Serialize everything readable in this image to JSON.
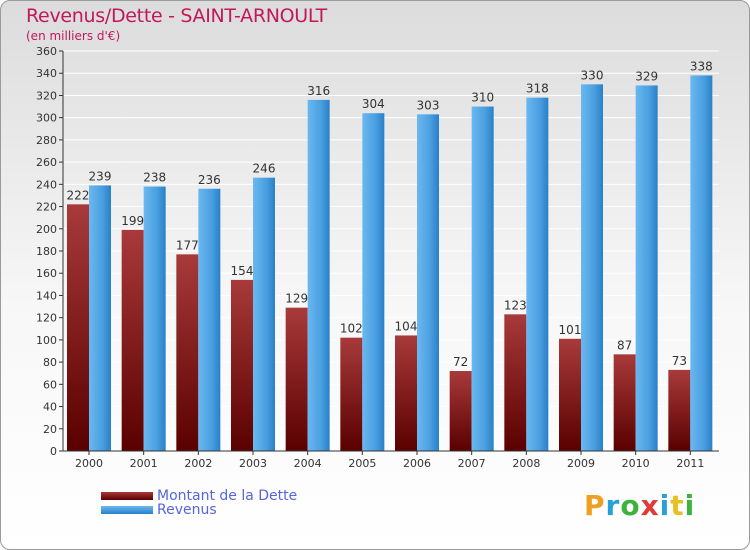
{
  "title": "Revenus/Dette - SAINT-ARNOULT",
  "subtitle": "(en milliers d'€)",
  "logo": {
    "text": "Proxiti",
    "colors": [
      "#f0a020",
      "#2aa0d8",
      "#3cb43c",
      "#e03a3a",
      "#2aa0d8",
      "#e8c020",
      "#3cb43c"
    ]
  },
  "colors": {
    "dette_dark": "#5a0000",
    "dette_light": "#a83a3a",
    "revenus_dark": "#2a80c8",
    "revenus_light": "#58aeea",
    "grid": "#ffffff"
  },
  "chart_data": {
    "type": "bar",
    "categories": [
      "2000",
      "2001",
      "2002",
      "2003",
      "2004",
      "2005",
      "2006",
      "2007",
      "2008",
      "2009",
      "2010",
      "2011"
    ],
    "series": [
      {
        "name": "Montant de la Dette",
        "values": [
          222,
          199,
          177,
          154,
          129,
          102,
          104,
          72,
          123,
          101,
          87,
          73
        ]
      },
      {
        "name": "Revenus",
        "values": [
          239,
          238,
          236,
          246,
          316,
          304,
          303,
          310,
          318,
          330,
          329,
          338
        ]
      }
    ],
    "title": "Revenus/Dette - SAINT-ARNOULT",
    "subtitle": "(en milliers d'€)",
    "ylim": [
      0,
      360
    ],
    "yticks": [
      0,
      20,
      40,
      60,
      80,
      100,
      120,
      140,
      160,
      180,
      200,
      220,
      240,
      260,
      280,
      300,
      320,
      340,
      360
    ],
    "grid": true,
    "legend": "bottom-left"
  }
}
